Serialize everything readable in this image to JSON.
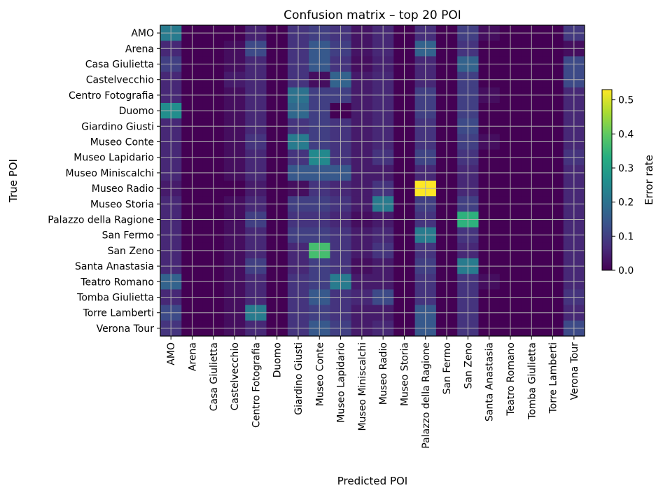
{
  "chart_data": {
    "type": "heatmap",
    "title": "Confusion matrix – top 20 POI",
    "xlabel": "Predicted POI",
    "ylabel": "True POI",
    "colorbar_label": "Error rate",
    "colormap": "viridis",
    "clim": [
      0,
      0.53
    ],
    "colorbar_ticks": [
      "0.0",
      "0.1",
      "0.2",
      "0.3",
      "0.4",
      "0.5"
    ],
    "grid": true,
    "labels": [
      "AMO",
      "Arena",
      "Casa Giulietta",
      "Castelvecchio",
      "Centro Fotografia",
      "Duomo",
      "Giardino Giusti",
      "Museo Conte",
      "Museo Lapidario",
      "Museo Miniscalchi",
      "Museo Radio",
      "Museo Storia",
      "Palazzo della Ragione",
      "San Fermo",
      "San Zeno",
      "Santa Anastasia",
      "Teatro Romano",
      "Tomba Giulietta",
      "Torre Lamberti",
      "Verona Tour"
    ],
    "values": [
      [
        0.22,
        0.0,
        0.0,
        0.0,
        0.05,
        0.0,
        0.08,
        0.1,
        0.08,
        0.03,
        0.06,
        0.0,
        0.07,
        0.0,
        0.1,
        0.02,
        0.0,
        0.0,
        0.0,
        0.09
      ],
      [
        0.06,
        0.0,
        0.0,
        0.02,
        0.12,
        0.0,
        0.08,
        0.15,
        0.1,
        0.03,
        0.06,
        0.0,
        0.17,
        0.0,
        0.08,
        0.0,
        0.0,
        0.0,
        0.0,
        0.02
      ],
      [
        0.1,
        0.0,
        0.0,
        0.02,
        0.06,
        0.0,
        0.08,
        0.15,
        0.08,
        0.02,
        0.05,
        0.0,
        0.06,
        0.0,
        0.17,
        0.0,
        0.0,
        0.0,
        0.0,
        0.12
      ],
      [
        0.06,
        0.0,
        0.0,
        0.04,
        0.06,
        0.0,
        0.08,
        0.02,
        0.17,
        0.04,
        0.06,
        0.0,
        0.06,
        0.0,
        0.1,
        0.0,
        0.0,
        0.0,
        0.0,
        0.12
      ],
      [
        0.06,
        0.0,
        0.0,
        0.02,
        0.06,
        0.0,
        0.2,
        0.1,
        0.1,
        0.04,
        0.06,
        0.0,
        0.1,
        0.0,
        0.1,
        0.02,
        0.0,
        0.0,
        0.0,
        0.06
      ],
      [
        0.26,
        0.0,
        0.0,
        0.02,
        0.06,
        0.0,
        0.18,
        0.1,
        0.0,
        0.04,
        0.06,
        0.0,
        0.1,
        0.0,
        0.1,
        0.0,
        0.0,
        0.0,
        0.0,
        0.06
      ],
      [
        0.06,
        0.0,
        0.0,
        0.02,
        0.06,
        0.0,
        0.08,
        0.1,
        0.08,
        0.04,
        0.06,
        0.0,
        0.08,
        0.0,
        0.12,
        0.0,
        0.0,
        0.0,
        0.0,
        0.06
      ],
      [
        0.06,
        0.0,
        0.0,
        0.02,
        0.08,
        0.0,
        0.22,
        0.1,
        0.08,
        0.04,
        0.06,
        0.0,
        0.08,
        0.0,
        0.1,
        0.02,
        0.0,
        0.0,
        0.0,
        0.06
      ],
      [
        0.06,
        0.0,
        0.0,
        0.02,
        0.06,
        0.0,
        0.08,
        0.25,
        0.08,
        0.04,
        0.08,
        0.0,
        0.11,
        0.0,
        0.08,
        0.0,
        0.0,
        0.0,
        0.0,
        0.08
      ],
      [
        0.06,
        0.0,
        0.0,
        0.02,
        0.06,
        0.0,
        0.15,
        0.15,
        0.15,
        0.04,
        0.04,
        0.0,
        0.06,
        0.0,
        0.06,
        0.0,
        0.0,
        0.0,
        0.0,
        0.06
      ],
      [
        0.04,
        0.0,
        0.0,
        0.0,
        0.04,
        0.0,
        0.02,
        0.08,
        0.06,
        0.04,
        0.08,
        0.0,
        0.53,
        0.0,
        0.06,
        0.0,
        0.0,
        0.0,
        0.0,
        0.06
      ],
      [
        0.06,
        0.0,
        0.0,
        0.02,
        0.06,
        0.0,
        0.1,
        0.1,
        0.08,
        0.04,
        0.22,
        0.0,
        0.1,
        0.0,
        0.1,
        0.0,
        0.0,
        0.0,
        0.0,
        0.06
      ],
      [
        0.06,
        0.0,
        0.0,
        0.02,
        0.1,
        0.0,
        0.08,
        0.08,
        0.06,
        0.02,
        0.04,
        0.0,
        0.08,
        0.0,
        0.34,
        0.0,
        0.0,
        0.0,
        0.0,
        0.06
      ],
      [
        0.06,
        0.0,
        0.0,
        0.02,
        0.06,
        0.0,
        0.1,
        0.1,
        0.08,
        0.04,
        0.06,
        0.0,
        0.22,
        0.0,
        0.08,
        0.0,
        0.0,
        0.0,
        0.0,
        0.06
      ],
      [
        0.06,
        0.0,
        0.0,
        0.02,
        0.06,
        0.0,
        0.06,
        0.37,
        0.08,
        0.04,
        0.08,
        0.0,
        0.08,
        0.0,
        0.06,
        0.0,
        0.0,
        0.0,
        0.0,
        0.06
      ],
      [
        0.06,
        0.0,
        0.0,
        0.02,
        0.1,
        0.0,
        0.06,
        0.1,
        0.08,
        0.02,
        0.04,
        0.0,
        0.1,
        0.0,
        0.22,
        0.0,
        0.0,
        0.0,
        0.0,
        0.06
      ],
      [
        0.17,
        0.0,
        0.0,
        0.02,
        0.06,
        0.0,
        0.08,
        0.1,
        0.22,
        0.04,
        0.04,
        0.0,
        0.08,
        0.0,
        0.08,
        0.02,
        0.0,
        0.0,
        0.0,
        0.06
      ],
      [
        0.06,
        0.0,
        0.0,
        0.02,
        0.06,
        0.0,
        0.08,
        0.15,
        0.08,
        0.06,
        0.12,
        0.0,
        0.08,
        0.0,
        0.08,
        0.0,
        0.0,
        0.0,
        0.0,
        0.08
      ],
      [
        0.12,
        0.0,
        0.0,
        0.02,
        0.22,
        0.0,
        0.08,
        0.1,
        0.08,
        0.04,
        0.04,
        0.0,
        0.15,
        0.0,
        0.08,
        0.0,
        0.0,
        0.0,
        0.0,
        0.06
      ],
      [
        0.08,
        0.0,
        0.0,
        0.02,
        0.06,
        0.0,
        0.08,
        0.15,
        0.1,
        0.04,
        0.06,
        0.0,
        0.15,
        0.0,
        0.08,
        0.0,
        0.0,
        0.0,
        0.0,
        0.12
      ]
    ]
  }
}
